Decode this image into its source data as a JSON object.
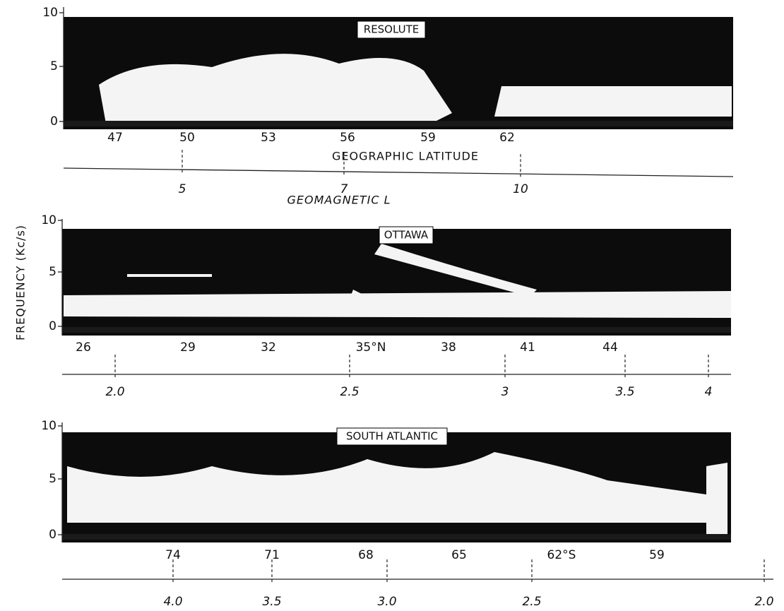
{
  "y_axis_label": "FREQUENCY (Kc/s)",
  "panels": [
    {
      "title": "RESOLUTE",
      "yticks": [
        "10",
        "5",
        "0"
      ],
      "latitude_ticks": [
        "47",
        "50",
        "53",
        "56",
        "59",
        "62"
      ],
      "latitude_label": "GEOGRAPHIC   LATITUDE",
      "l_ticks": [
        "5",
        "7",
        "10"
      ],
      "l_label": "GEOMAGNETIC   L"
    },
    {
      "title": "OTTAWA",
      "yticks": [
        "10",
        "5",
        "0"
      ],
      "latitude_ticks": [
        "26",
        "29",
        "32",
        "35°N",
        "38",
        "41",
        "44"
      ],
      "l_ticks": [
        "2.0",
        "2.5",
        "3",
        "3.5",
        "4"
      ]
    },
    {
      "title": "SOUTH ATLANTIC",
      "yticks": [
        "10",
        "5",
        "0"
      ],
      "latitude_ticks": [
        "74",
        "71",
        "68",
        "65",
        "62°S",
        "59"
      ],
      "l_ticks": [
        "4.0",
        "3.5",
        "3.0",
        "2.5",
        "2.0"
      ]
    }
  ]
}
